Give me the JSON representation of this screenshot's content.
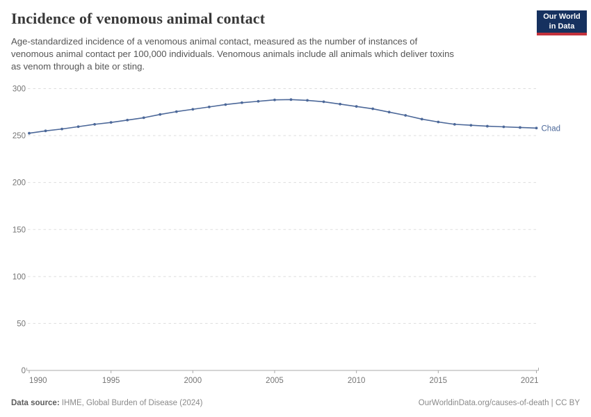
{
  "header": {
    "title": "Incidence of venomous animal contact",
    "subtitle_lines": [
      "Age-standardized incidence of a venomous animal contact, measured as the number of instances of",
      "venomous animal contact per 100,000 individuals. Venomous animals include all animals which deliver toxins",
      "as venom through a bite or sting."
    ],
    "logo": {
      "line1": "Our World",
      "line2": "in Data",
      "navy": "#16315f",
      "red": "#c3313c"
    }
  },
  "chart_data": {
    "type": "line",
    "title": "Incidence of venomous animal contact",
    "subtitle": "Age-standardized incidence of a venomous animal contact, measured as the number of instances of venomous animal contact per 100,000 individuals. Venomous animals include all animals which deliver toxins as venom through a bite or sting.",
    "x": [
      1990,
      1991,
      1992,
      1993,
      1994,
      1995,
      1996,
      1997,
      1998,
      1999,
      2000,
      2001,
      2002,
      2003,
      2004,
      2005,
      2006,
      2007,
      2008,
      2009,
      2010,
      2011,
      2012,
      2013,
      2014,
      2015,
      2016,
      2017,
      2018,
      2019,
      2020,
      2021
    ],
    "series": [
      {
        "name": "Chad",
        "color": "#4c6899",
        "values": [
          252.5,
          255,
          257,
          259.5,
          262,
          264,
          266.5,
          269,
          272.5,
          275.5,
          278,
          280.5,
          283,
          285,
          286.5,
          288,
          288.3,
          287.5,
          286,
          283.5,
          281,
          278.5,
          275,
          271.5,
          267.5,
          264.5,
          262,
          261,
          260,
          259.3,
          258.6,
          258
        ]
      }
    ],
    "xlim": [
      1990,
      2021
    ],
    "ylim": [
      0,
      300
    ],
    "yticks": [
      0,
      50,
      100,
      150,
      200,
      250,
      300
    ],
    "xticks": [
      1990,
      1995,
      2000,
      2005,
      2010,
      2015,
      2021
    ],
    "grid": "horizontal-dashed",
    "legend": "line-end-label",
    "unit": "per 100,000 individuals"
  },
  "style": {
    "grid_color": "#dddddd",
    "axis_color": "#a8a8a8",
    "tick_label_color": "#757575"
  },
  "footer": {
    "source_label": "Data source:",
    "source_text": " IHME, Global Burden of Disease (2024)",
    "link_text": "OurWorldinData.org/causes-of-death | CC BY"
  }
}
